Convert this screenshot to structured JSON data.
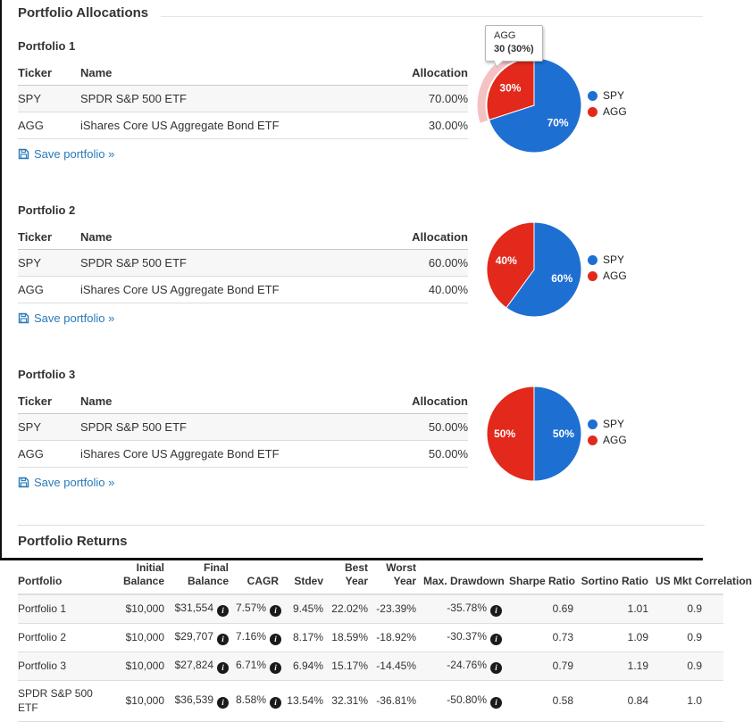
{
  "colors": {
    "spy": "#1E6FD2",
    "agg": "#E2291C",
    "link": "#2a7ab9",
    "hover_ring": "#f5c2c4"
  },
  "headings": {
    "allocations": "Portfolio Allocations",
    "returns": "Portfolio Returns"
  },
  "allocation_table": {
    "headers": {
      "ticker": "Ticker",
      "name": "Name",
      "allocation": "Allocation"
    },
    "save_label": "Save portfolio »"
  },
  "legend": [
    {
      "label": "SPY",
      "color_key": "spy"
    },
    {
      "label": "AGG",
      "color_key": "agg"
    }
  ],
  "portfolios": [
    {
      "label": "Portfolio 1",
      "holdings": [
        {
          "ticker": "SPY",
          "name": "SPDR S&P 500 ETF",
          "allocation": "70.00%"
        },
        {
          "ticker": "AGG",
          "name": "iShares Core US Aggregate Bond ETF",
          "allocation": "30.00%"
        }
      ],
      "pie": {
        "slices": [
          {
            "name": "SPY",
            "value": 70,
            "label": "70%",
            "color_key": "spy"
          },
          {
            "name": "AGG",
            "value": 30,
            "label": "30%",
            "color_key": "agg"
          }
        ],
        "highlight": "AGG",
        "tooltip": {
          "title": "AGG",
          "value": "30 (30%)"
        }
      }
    },
    {
      "label": "Portfolio 2",
      "holdings": [
        {
          "ticker": "SPY",
          "name": "SPDR S&P 500 ETF",
          "allocation": "60.00%"
        },
        {
          "ticker": "AGG",
          "name": "iShares Core US Aggregate Bond ETF",
          "allocation": "40.00%"
        }
      ],
      "pie": {
        "slices": [
          {
            "name": "SPY",
            "value": 60,
            "label": "60%",
            "color_key": "spy"
          },
          {
            "name": "AGG",
            "value": 40,
            "label": "40%",
            "color_key": "agg"
          }
        ]
      }
    },
    {
      "label": "Portfolio 3",
      "holdings": [
        {
          "ticker": "SPY",
          "name": "SPDR S&P 500 ETF",
          "allocation": "50.00%"
        },
        {
          "ticker": "AGG",
          "name": "iShares Core US Aggregate Bond ETF",
          "allocation": "50.00%"
        }
      ],
      "pie": {
        "slices": [
          {
            "name": "SPY",
            "value": 50,
            "label": "50%",
            "color_key": "spy"
          },
          {
            "name": "AGG",
            "value": 50,
            "label": "50%",
            "color_key": "agg"
          }
        ]
      }
    }
  ],
  "returns_table": {
    "headers": [
      "Portfolio",
      "Initial Balance",
      "Final Balance",
      "CAGR",
      "Stdev",
      "Best Year",
      "Worst Year",
      "Max. Drawdown",
      "Sharpe Ratio",
      "Sortino Ratio",
      "US Mkt Correlation"
    ],
    "info_icon": "i",
    "rows": [
      {
        "portfolio": "Portfolio 1",
        "initial_balance": "$10,000",
        "final_balance": "$31,554",
        "cagr": "7.57%",
        "stdev": "9.45%",
        "best_year": "22.02%",
        "worst_year": "-23.39%",
        "max_drawdown": "-35.78%",
        "sharpe": "0.69",
        "sortino": "1.01",
        "us_mkt_correlation": "0.9"
      },
      {
        "portfolio": "Portfolio 2",
        "initial_balance": "$10,000",
        "final_balance": "$29,707",
        "cagr": "7.16%",
        "stdev": "8.17%",
        "best_year": "18.59%",
        "worst_year": "-18.92%",
        "max_drawdown": "-30.37%",
        "sharpe": "0.73",
        "sortino": "1.09",
        "us_mkt_correlation": "0.9"
      },
      {
        "portfolio": "Portfolio 3",
        "initial_balance": "$10,000",
        "final_balance": "$27,824",
        "cagr": "6.71%",
        "stdev": "6.94%",
        "best_year": "15.17%",
        "worst_year": "-14.45%",
        "max_drawdown": "-24.76%",
        "sharpe": "0.79",
        "sortino": "1.19",
        "us_mkt_correlation": "0.9"
      },
      {
        "portfolio": "SPDR S&P 500 ETF",
        "initial_balance": "$10,000",
        "final_balance": "$36,539",
        "cagr": "8.58%",
        "stdev": "13.54%",
        "best_year": "32.31%",
        "worst_year": "-36.81%",
        "max_drawdown": "-50.80%",
        "sharpe": "0.58",
        "sortino": "0.84",
        "us_mkt_correlation": "1.0"
      }
    ]
  }
}
